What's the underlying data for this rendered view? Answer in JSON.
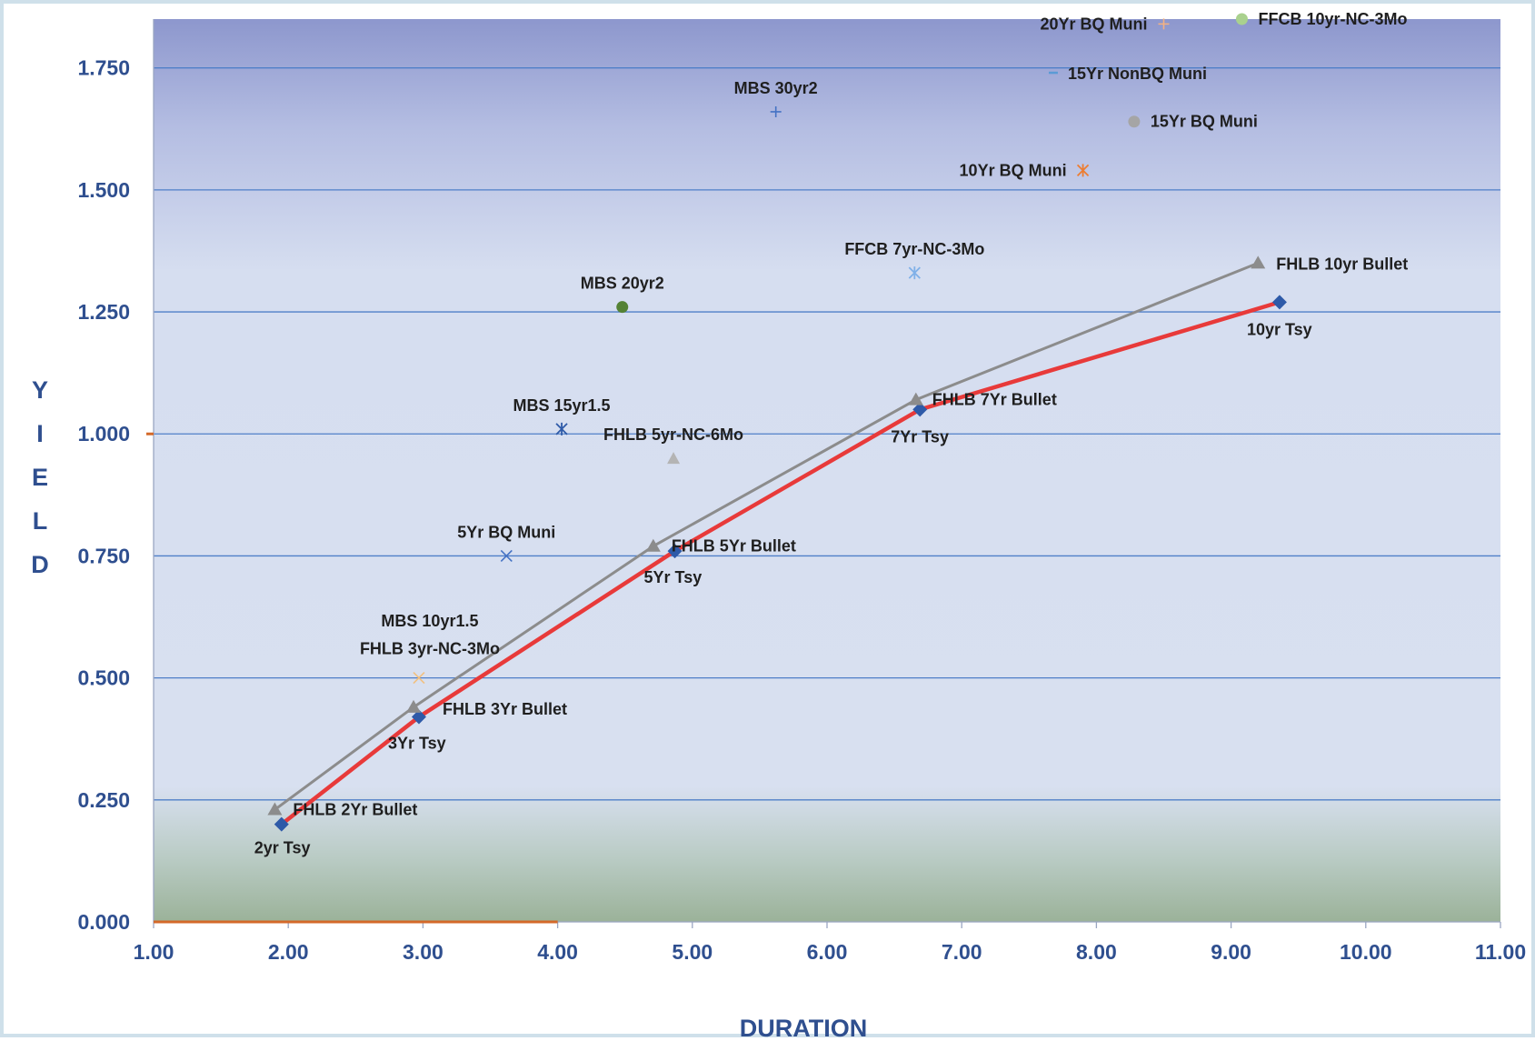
{
  "chart_data": {
    "type": "scatter",
    "title": "",
    "xlabel": "DURATION",
    "ylabel": "YIELD",
    "xlim": [
      1.0,
      11.0
    ],
    "ylim": [
      0.0,
      1.85
    ],
    "x_ticks": [
      "1.00",
      "2.00",
      "3.00",
      "4.00",
      "5.00",
      "6.00",
      "7.00",
      "8.00",
      "9.00",
      "10.00",
      "11.00"
    ],
    "y_ticks": [
      "0.000",
      "0.250",
      "0.500",
      "0.750",
      "1.000",
      "1.250",
      "1.500",
      "1.750"
    ],
    "grid": true,
    "colors": {
      "treasury_line": "#e83a3a",
      "treasury_marker": "#2e5aa8",
      "fhlb_line": "#8c8c8c",
      "fhlb_marker": "#8c8c8c",
      "axis_text": "#2f4f8f",
      "gridline": "#4f7fc8"
    },
    "series": [
      {
        "name": "Tsy",
        "style": "line-diamond",
        "color": "#e83a3a",
        "points": [
          {
            "x": 1.95,
            "y": 0.2,
            "label": "2yr Tsy"
          },
          {
            "x": 2.97,
            "y": 0.42,
            "label": "3Yr Tsy"
          },
          {
            "x": 4.87,
            "y": 0.76,
            "label": "5Yr Tsy"
          },
          {
            "x": 6.69,
            "y": 1.05,
            "label": "7Yr Tsy"
          },
          {
            "x": 9.36,
            "y": 1.27,
            "label": "10yr Tsy"
          }
        ]
      },
      {
        "name": "FHLB Bullet",
        "style": "line-triangle",
        "color": "#8c8c8c",
        "points": [
          {
            "x": 1.9,
            "y": 0.23,
            "label": "FHLB 2Yr Bullet"
          },
          {
            "x": 2.93,
            "y": 0.44,
            "label": "FHLB 3Yr Bullet"
          },
          {
            "x": 4.71,
            "y": 0.77,
            "label": "FHLB 5Yr Bullet"
          },
          {
            "x": 6.66,
            "y": 1.07,
            "label": "FHLB 7Yr Bullet"
          },
          {
            "x": 9.2,
            "y": 1.35,
            "label": "FHLB 10yr Bullet"
          }
        ]
      }
    ],
    "points": [
      {
        "x": 5.62,
        "y": 1.66,
        "label": "MBS 30yr2",
        "marker": "plus",
        "color": "#4472c4"
      },
      {
        "x": 4.48,
        "y": 1.26,
        "label": "MBS 20yr2",
        "marker": "circle",
        "color": "#548235"
      },
      {
        "x": 4.03,
        "y": 1.01,
        "label": "MBS 15yr1.5",
        "marker": "asterisk",
        "color": "#2e5aa8"
      },
      {
        "x": 2.97,
        "y": 0.55,
        "label": "MBS 10yr1.5",
        "marker": "none",
        "color": "#f2c080"
      },
      {
        "x": 2.97,
        "y": 0.5,
        "label": "FHLB 3yr-NC-3Mo",
        "marker": "x",
        "color": "#f2c080"
      },
      {
        "x": 4.86,
        "y": 0.95,
        "label": "FHLB 5yr-NC-6Mo",
        "marker": "triangle",
        "color": "#b4b4b4"
      },
      {
        "x": 3.62,
        "y": 0.75,
        "label": "5Yr BQ Muni",
        "marker": "x",
        "color": "#4472c4"
      },
      {
        "x": 6.65,
        "y": 1.33,
        "label": "FFCB 7yr-NC-3Mo",
        "marker": "asterisk",
        "color": "#7fb0e8"
      },
      {
        "x": 9.08,
        "y": 1.85,
        "label": "FFCB 10yr-NC-3Mo",
        "marker": "circle",
        "color": "#a9d18e"
      },
      {
        "x": 8.5,
        "y": 1.84,
        "label": "20Yr BQ Muni",
        "marker": "plus",
        "color": "#f4b183"
      },
      {
        "x": 7.68,
        "y": 1.74,
        "label": "15Yr NonBQ Muni",
        "marker": "dash",
        "color": "#5b9bd5"
      },
      {
        "x": 8.28,
        "y": 1.64,
        "label": "15Yr BQ Muni",
        "marker": "circle",
        "color": "#a5a5a5"
      },
      {
        "x": 7.9,
        "y": 1.54,
        "label": "10Yr BQ Muni",
        "marker": "asterisk",
        "color": "#ed7d31"
      }
    ]
  }
}
